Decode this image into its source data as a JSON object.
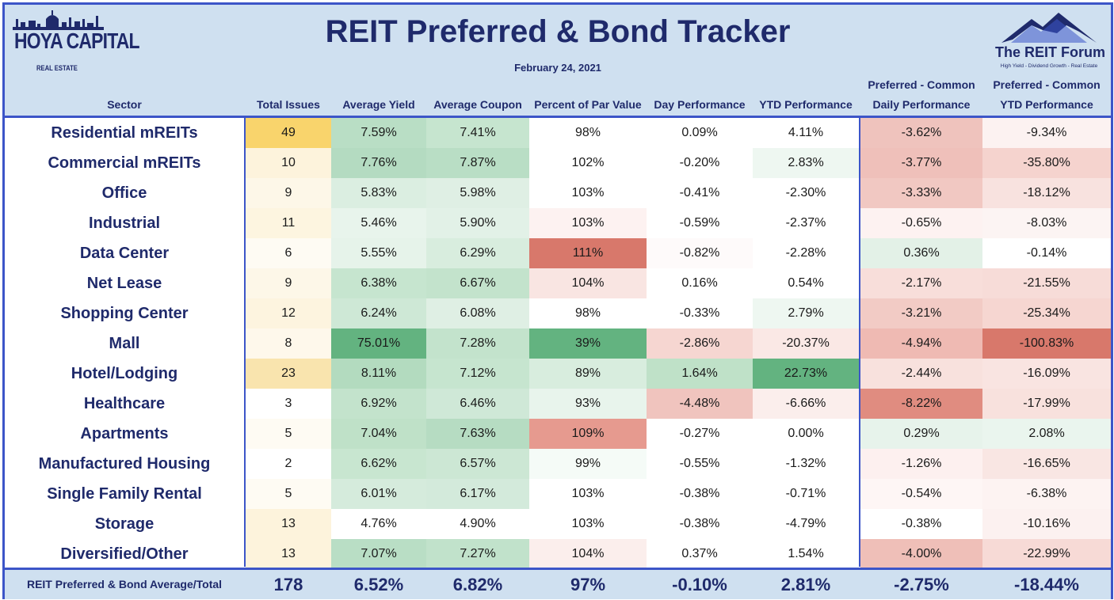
{
  "header": {
    "title": "REIT Preferred & Bond Tracker",
    "date": "February 24, 2021",
    "logo_left": {
      "brand": "HOYA CAPITAL",
      "sub": "REAL ESTATE"
    },
    "logo_right": {
      "brand": "The REIT Forum",
      "tag": "High Yield - Dividend Growth - Real Estate"
    }
  },
  "columns": [
    {
      "label_1": "",
      "label_2": "Sector"
    },
    {
      "label_1": "",
      "label_2": "Total Issues"
    },
    {
      "label_1": "",
      "label_2": "Average Yield"
    },
    {
      "label_1": "",
      "label_2": "Average Coupon"
    },
    {
      "label_1": "",
      "label_2": "Percent of Par Value"
    },
    {
      "label_1": "",
      "label_2": "Day Performance"
    },
    {
      "label_1": "",
      "label_2": "YTD Performance"
    },
    {
      "label_1": "Preferred - Common",
      "label_2": "Daily Performance"
    },
    {
      "label_1": "Preferred - Common",
      "label_2": "YTD Performance"
    }
  ],
  "colors": {
    "accent": "#3c55c8",
    "header_bg": "#cfe0f0",
    "title": "#1f2a6b",
    "green": "#63b380",
    "red": "#d8786b",
    "yellow": "#f9d46c"
  },
  "chart_data": {
    "type": "table",
    "title": "REIT Preferred & Bond Tracker",
    "subtitle": "February 24, 2021",
    "columns": [
      "Sector",
      "Total Issues",
      "Average Yield",
      "Average Coupon",
      "Percent of Par Value",
      "Day Performance",
      "YTD Performance",
      "Preferred - Common Daily Performance",
      "Preferred - Common YTD Performance"
    ],
    "rows": [
      [
        "Residential mREITs",
        "49",
        "7.59%",
        "7.41%",
        "98%",
        "0.09%",
        "4.11%",
        "-3.62%",
        "-9.34%"
      ],
      [
        "Commercial mREITs",
        "10",
        "7.76%",
        "7.87%",
        "102%",
        "-0.20%",
        "2.83%",
        "-3.77%",
        "-35.80%"
      ],
      [
        "Office",
        "9",
        "5.83%",
        "5.98%",
        "103%",
        "-0.41%",
        "-2.30%",
        "-3.33%",
        "-18.12%"
      ],
      [
        "Industrial",
        "11",
        "5.46%",
        "5.90%",
        "103%",
        "-0.59%",
        "-2.37%",
        "-0.65%",
        "-8.03%"
      ],
      [
        "Data Center",
        "6",
        "5.55%",
        "6.29%",
        "111%",
        "-0.82%",
        "-2.28%",
        "0.36%",
        "-0.14%"
      ],
      [
        "Net Lease",
        "9",
        "6.38%",
        "6.67%",
        "104%",
        "0.16%",
        "0.54%",
        "-2.17%",
        "-21.55%"
      ],
      [
        "Shopping Center",
        "12",
        "6.24%",
        "6.08%",
        "98%",
        "-0.33%",
        "2.79%",
        "-3.21%",
        "-25.34%"
      ],
      [
        "Mall",
        "8",
        "75.01%",
        "7.28%",
        "39%",
        "-2.86%",
        "-20.37%",
        "-4.94%",
        "-100.83%"
      ],
      [
        "Hotel/Lodging",
        "23",
        "8.11%",
        "7.12%",
        "89%",
        "1.64%",
        "22.73%",
        "-2.44%",
        "-16.09%"
      ],
      [
        "Healthcare",
        "3",
        "6.92%",
        "6.46%",
        "93%",
        "-4.48%",
        "-6.66%",
        "-8.22%",
        "-17.99%"
      ],
      [
        "Apartments",
        "5",
        "7.04%",
        "7.63%",
        "109%",
        "-0.27%",
        "0.00%",
        "0.29%",
        "2.08%"
      ],
      [
        "Manufactured Housing",
        "2",
        "6.62%",
        "6.57%",
        "99%",
        "-0.55%",
        "-1.32%",
        "-1.26%",
        "-16.65%"
      ],
      [
        "Single Family Rental",
        "5",
        "6.01%",
        "6.17%",
        "103%",
        "-0.38%",
        "-0.71%",
        "-0.54%",
        "-6.38%"
      ],
      [
        "Storage",
        "13",
        "4.76%",
        "4.90%",
        "103%",
        "-0.38%",
        "-4.79%",
        "-0.38%",
        "-10.16%"
      ],
      [
        "Diversified/Other",
        "13",
        "7.07%",
        "7.27%",
        "104%",
        "0.37%",
        "1.54%",
        "-4.00%",
        "-22.99%"
      ]
    ],
    "cell_colors": [
      [
        null,
        "#f9d46c",
        "#b9dec5",
        "#c6e5cf",
        "#ffffff",
        "#ffffff",
        "#ffffff",
        "#efc3bd",
        "#fcf2f1"
      ],
      [
        null,
        "#fdf3dc",
        "#b4dbc1",
        "#b9dec5",
        "#ffffff",
        "#ffffff",
        "#eef7f1",
        "#efc0ba",
        "#f5d3ce"
      ],
      [
        null,
        "#fdf7e8",
        "#dbeee1",
        "#dfefe4",
        "#ffffff",
        "#ffffff",
        "#ffffff",
        "#f1c8c2",
        "#f8e2df"
      ],
      [
        null,
        "#fdf5e0",
        "#e8f4ec",
        "#e2f1e7",
        "#fdf2f1",
        "#ffffff",
        "#ffffff",
        "#fdf2f1",
        "#fcf4f3"
      ],
      [
        null,
        "#fefbf3",
        "#e6f3ea",
        "#d8edde",
        "#d8786b",
        "#fefafa",
        "#ffffff",
        "#e3f1e7",
        "#ffffff"
      ],
      [
        null,
        "#fdf7e8",
        "#c6e5cf",
        "#c3e3cc",
        "#f9e5e2",
        "#ffffff",
        "#ffffff",
        "#f8deda",
        "#f7dcd8"
      ],
      [
        null,
        "#fdf4df",
        "#cee8d6",
        "#dfefe4",
        "#ffffff",
        "#ffffff",
        "#eef7f1",
        "#f2cbc5",
        "#f6d6d1"
      ],
      [
        null,
        "#fef8eb",
        "#63b380",
        "#c3e3cc",
        "#63b380",
        "#f6d6d1",
        "#fae8e5",
        "#efbab3",
        "#d8786b"
      ],
      [
        null,
        "#f9e4ae",
        "#b3dbbf",
        "#c6e5cf",
        "#d8edde",
        "#bfe1c8",
        "#63b380",
        "#f8e1dd",
        "#f9e4e1"
      ],
      [
        null,
        "#ffffff",
        "#c3e3cc",
        "#cfe8d7",
        "#e8f4ec",
        "#f0c4be",
        "#fbeeec",
        "#e08c80",
        "#f8e1dd"
      ],
      [
        null,
        "#fefbf3",
        "#bfe1c8",
        "#b6dcc2",
        "#e69a8f",
        "#ffffff",
        "#ffffff",
        "#e7f3eb",
        "#eaf5ee"
      ],
      [
        null,
        "#ffffff",
        "#c8e6d0",
        "#cce7d4",
        "#f5fbf7",
        "#ffffff",
        "#ffffff",
        "#fdf0ef",
        "#f9e6e3"
      ],
      [
        null,
        "#fefbf3",
        "#d5ebdc",
        "#d3eadb",
        "#ffffff",
        "#ffffff",
        "#ffffff",
        "#fef6f5",
        "#fdf3f2"
      ],
      [
        null,
        "#fdf3dc",
        "#ffffff",
        "#ffffff",
        "#ffffff",
        "#ffffff",
        "#ffffff",
        "#ffffff",
        "#fcf1f0"
      ],
      [
        null,
        "#fdf3dc",
        "#b9dec5",
        "#c1e2cb",
        "#fbeeec",
        "#ffffff",
        "#ffffff",
        "#efbfb8",
        "#f7dad6"
      ]
    ],
    "total_row": [
      "REIT Preferred & Bond Average/Total",
      "178",
      "6.52%",
      "6.82%",
      "97%",
      "-0.10%",
      "2.81%",
      "-2.75%",
      "-18.44%"
    ]
  }
}
